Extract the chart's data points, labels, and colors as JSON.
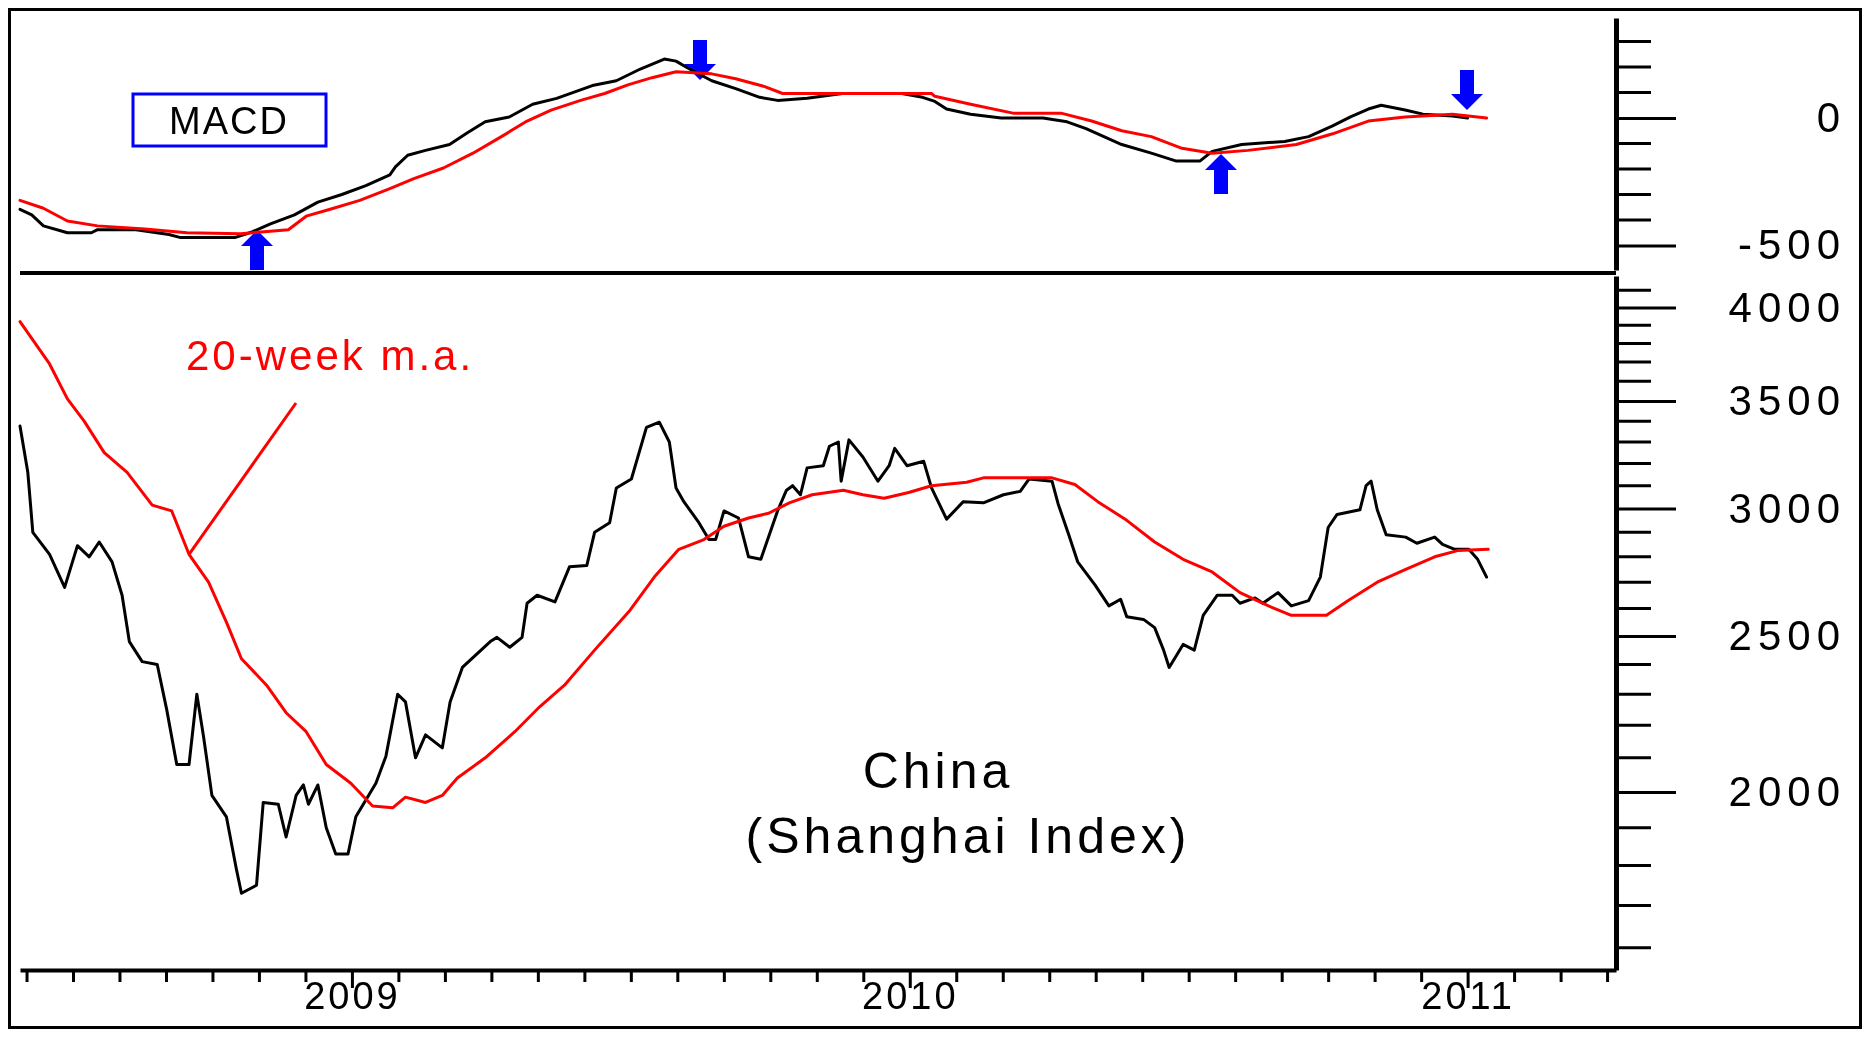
{
  "chart_data": [
    {
      "type": "line",
      "title": "MACD",
      "xlim": [
        2008.405,
        2011.266
      ],
      "ylim": [
        -596,
        392
      ],
      "tick_labels": "y",
      "grid": false,
      "legend": false,
      "yticks": [
        -500,
        0
      ],
      "series": [
        {
          "color": "#000000",
          "x": [
            2008.405,
            2008.426,
            2008.447,
            2008.49,
            2008.533,
            2008.544,
            2008.613,
            2008.672,
            2008.693,
            2008.736,
            2008.79,
            2008.822,
            2008.854,
            2008.897,
            2008.939,
            2008.982,
            2009.025,
            2009.068,
            2009.078,
            2009.1,
            2009.132,
            2009.175,
            2009.207,
            2009.239,
            2009.282,
            2009.324,
            2009.367,
            2009.431,
            2009.474,
            2009.517,
            2009.56,
            2009.581,
            2009.602,
            2009.645,
            2009.688,
            2009.731,
            2009.763,
            2009.816,
            2009.879,
            2009.986,
            2010.023,
            2010.045,
            2010.066,
            2010.109,
            2010.164,
            2010.239,
            2010.282,
            2010.316,
            2010.348,
            2010.38,
            2010.433,
            2010.478,
            2010.52,
            2010.542,
            2010.595,
            2010.672,
            2010.715,
            2010.758,
            2010.79,
            2010.822,
            2010.845,
            2010.888,
            2010.92,
            2010.973,
            2011.0
          ],
          "values": [
            -358,
            -380,
            -423,
            -450,
            -450,
            -438,
            -438,
            -457,
            -469,
            -469,
            -469,
            -446,
            -415,
            -380,
            -330,
            -300,
            -265,
            -223,
            -192,
            -146,
            -127,
            -104,
            -58,
            -15,
            4,
            54,
            77,
            127,
            146,
            192,
            231,
            223,
            196,
            146,
            115,
            81,
            69,
            77,
            96,
            96,
            81,
            65,
            35,
            15,
            0,
            0,
            -15,
            -42,
            -73,
            -104,
            -138,
            -169,
            -169,
            -131,
            -104,
            -92,
            -73,
            -31,
            4,
            35,
            50,
            31,
            15,
            8,
            0
          ]
        },
        {
          "color": "#ff0000",
          "x": [
            2008.405,
            2008.447,
            2008.49,
            2008.544,
            2008.629,
            2008.704,
            2008.8,
            2008.843,
            2008.886,
            2008.918,
            2008.961,
            2009.014,
            2009.068,
            2009.111,
            2009.164,
            2009.217,
            2009.271,
            2009.314,
            2009.357,
            2009.41,
            2009.453,
            2009.496,
            2009.538,
            2009.581,
            2009.645,
            2009.688,
            2009.74,
            2009.772,
            2010.039,
            2010.045,
            2010.109,
            2010.185,
            2010.271,
            2010.326,
            2010.38,
            2010.433,
            2010.488,
            2010.542,
            2010.606,
            2010.693,
            2010.758,
            2010.822,
            2010.888,
            2010.973,
            2011.034
          ],
          "values": [
            -323,
            -354,
            -404,
            -423,
            -435,
            -450,
            -454,
            -446,
            -438,
            -385,
            -358,
            -323,
            -277,
            -238,
            -196,
            -138,
            -69,
            -12,
            31,
            69,
            96,
            131,
            158,
            181,
            173,
            154,
            123,
            96,
            96,
            85,
            54,
            19,
            19,
            -12,
            -50,
            -73,
            -119,
            -138,
            -127,
            -104,
            -62,
            -12,
            4,
            15,
            0
          ]
        }
      ]
    },
    {
      "type": "line",
      "title": "China (Shanghai Index)",
      "xlim": [
        2008.405,
        2011.266
      ],
      "ylim": [
        1550,
        4185
      ],
      "log": "y",
      "grid": false,
      "legend": false,
      "xticks": [
        {
          "value": 2008.4167,
          "label": null
        },
        {
          "value": 2008.5,
          "label": null
        },
        {
          "value": 2008.5833,
          "label": null
        },
        {
          "value": 2008.6667,
          "label": null
        },
        {
          "value": 2008.75,
          "label": null
        },
        {
          "value": 2008.8333,
          "label": null
        },
        {
          "value": 2008.9167,
          "label": null
        },
        2009,
        {
          "value": 2009.0833,
          "label": null
        },
        {
          "value": 2009.1667,
          "label": null
        },
        {
          "value": 2009.25,
          "label": null
        },
        {
          "value": 2009.3333,
          "label": null
        },
        {
          "value": 2009.4167,
          "label": null
        },
        {
          "value": 2009.5,
          "label": null
        },
        {
          "value": 2009.5833,
          "label": null
        },
        {
          "value": 2009.6667,
          "label": null
        },
        {
          "value": 2009.75,
          "label": null
        },
        {
          "value": 2009.8333,
          "label": null
        },
        {
          "value": 2009.9167,
          "label": null
        },
        2010,
        {
          "value": 2010.0833,
          "label": null
        },
        {
          "value": 2010.1667,
          "label": null
        },
        {
          "value": 2010.25,
          "label": null
        },
        {
          "value": 2010.3333,
          "label": null
        },
        {
          "value": 2010.4167,
          "label": null
        },
        {
          "value": 2010.5,
          "label": null
        },
        {
          "value": 2010.5833,
          "label": null
        },
        {
          "value": 2010.6667,
          "label": null
        },
        {
          "value": 2010.75,
          "label": null
        },
        {
          "value": 2010.8333,
          "label": null
        },
        {
          "value": 2010.9167,
          "label": null
        },
        2011,
        {
          "value": 2011.0833,
          "label": null
        },
        {
          "value": 2011.1667,
          "label": null
        },
        {
          "value": 2011.25,
          "label": null
        }
      ],
      "yticks": [
        2000,
        2500,
        3000,
        3500,
        4000
      ],
      "series": [
        {
          "color": "#000000",
          "x": [
            2008.405,
            2008.419,
            2008.428,
            2008.458,
            2008.485,
            2008.508,
            2008.529,
            2008.547,
            2008.57,
            2008.588,
            2008.601,
            2008.624,
            2008.651,
            2008.668,
            2008.686,
            2008.708,
            2008.722,
            2008.734,
            2008.749,
            2008.775,
            2008.793,
            2008.802,
            2008.829,
            2008.841,
            2008.868,
            2008.882,
            2008.9,
            2008.913,
            2008.922,
            2008.939,
            2008.954,
            2008.971,
            2008.993,
            2009.007,
            2009.043,
            2009.061,
            2009.082,
            2009.096,
            2009.114,
            2009.132,
            2009.162,
            2009.176,
            2009.198,
            2009.248,
            2009.26,
            2009.283,
            2009.305,
            2009.314,
            2009.332,
            2009.364,
            2009.39,
            2009.421,
            2009.435,
            2009.462,
            2009.474,
            2009.501,
            2009.528,
            2009.551,
            2009.569,
            2009.581,
            2009.595,
            2009.622,
            2009.64,
            2009.652,
            2009.667,
            2009.693,
            2009.711,
            2009.733,
            2009.763,
            2009.779,
            2009.79,
            2009.804,
            2009.816,
            2009.845,
            2009.856,
            2009.872,
            2009.877,
            2009.891,
            2009.916,
            2009.943,
            2009.963,
            2009.973,
            2009.995,
            2010.025,
            2010.039,
            2010.066,
            2010.096,
            2010.132,
            2010.168,
            2010.198,
            2010.214,
            2010.255,
            2010.266,
            2010.285,
            2010.301,
            2010.332,
            2010.357,
            2010.378,
            2010.389,
            2010.419,
            2010.439,
            2010.455,
            2010.465,
            2010.49,
            2010.51,
            2010.526,
            2010.551,
            2010.578,
            2010.592,
            2010.619,
            2010.633,
            2010.66,
            2010.684,
            2010.715,
            2010.736,
            2010.75,
            2010.766,
            2010.807,
            2010.818,
            2010.827,
            2010.838,
            2010.854,
            2010.889,
            2010.909,
            2010.941,
            2010.955,
            2010.977,
            2011.002,
            2011.018,
            2011.034
          ],
          "values": [
            3376,
            3160,
            2900,
            2810,
            2680,
            2845,
            2800,
            2860,
            2780,
            2650,
            2480,
            2410,
            2400,
            2250,
            2080,
            2080,
            2300,
            2165,
            1990,
            1930,
            1790,
            1730,
            1750,
            1970,
            1965,
            1875,
            1990,
            2020,
            1965,
            2020,
            1900,
            1830,
            1830,
            1930,
            2025,
            2105,
            2300,
            2275,
            2100,
            2170,
            2130,
            2275,
            2390,
            2480,
            2495,
            2460,
            2495,
            2620,
            2650,
            2625,
            2760,
            2765,
            2900,
            2940,
            3090,
            3130,
            3370,
            3395,
            3300,
            3090,
            3030,
            2940,
            2870,
            2870,
            2990,
            2960,
            2800,
            2790,
            2990,
            3080,
            3100,
            3060,
            3180,
            3190,
            3280,
            3300,
            3120,
            3310,
            3230,
            3120,
            3190,
            3270,
            3190,
            3210,
            3090,
            2955,
            3030,
            3025,
            3060,
            3075,
            3130,
            3120,
            3020,
            2890,
            2780,
            2690,
            2610,
            2635,
            2570,
            2560,
            2530,
            2450,
            2390,
            2470,
            2450,
            2575,
            2650,
            2650,
            2620,
            2640,
            2620,
            2660,
            2610,
            2630,
            2720,
            2920,
            2975,
            2995,
            3100,
            3120,
            2995,
            2890,
            2880,
            2855,
            2880,
            2850,
            2830,
            2830,
            2790,
            2720
          ]
        },
        {
          "name": "20-week m.a.",
          "color": "#ff0000",
          "x": [
            2008.405,
            2008.458,
            2008.49,
            2008.52,
            2008.556,
            2008.597,
            2008.642,
            2008.677,
            2008.708,
            2008.743,
            2008.775,
            2008.802,
            2008.847,
            2008.882,
            2008.918,
            2008.954,
            2008.998,
            2009.037,
            2009.073,
            2009.096,
            2009.132,
            2009.162,
            2009.189,
            2009.239,
            2009.292,
            2009.337,
            2009.381,
            2009.435,
            2009.497,
            2009.542,
            2009.586,
            2009.631,
            2009.667,
            2009.711,
            2009.747,
            2009.784,
            2009.825,
            2009.881,
            2009.916,
            2009.954,
            2009.998,
            2010.039,
            2010.102,
            2010.132,
            2010.255,
            2010.296,
            2010.337,
            2010.389,
            2010.439,
            2010.49,
            2010.542,
            2010.592,
            2010.643,
            2010.684,
            2010.747,
            2010.786,
            2010.838,
            2010.889,
            2010.941,
            2010.982,
            2011.037
          ],
          "values": [
            3920,
            3690,
            3510,
            3400,
            3250,
            3160,
            3015,
            2990,
            2810,
            2700,
            2550,
            2420,
            2330,
            2240,
            2180,
            2080,
            2025,
            1960,
            1955,
            1985,
            1970,
            1990,
            2040,
            2100,
            2180,
            2260,
            2330,
            2450,
            2590,
            2720,
            2830,
            2870,
            2925,
            2960,
            2980,
            3025,
            3060,
            3080,
            3060,
            3045,
            3070,
            3100,
            3115,
            3135,
            3135,
            3105,
            3030,
            2950,
            2860,
            2790,
            2740,
            2660,
            2610,
            2575,
            2575,
            2630,
            2700,
            2750,
            2800,
            2825,
            2830
          ]
        }
      ]
    }
  ]
}
